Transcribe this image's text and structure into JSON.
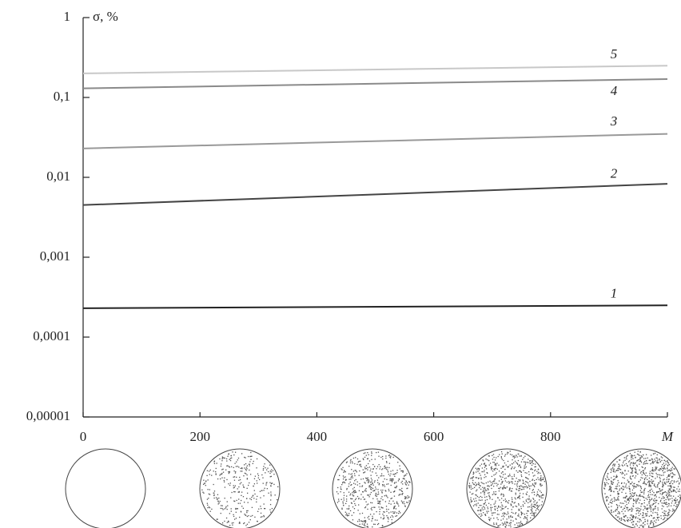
{
  "chart_data": {
    "type": "line",
    "log_y": true,
    "ylabel": "σ, %",
    "xlabel": "M",
    "x": [
      0,
      1000
    ],
    "xlim": [
      0,
      1000
    ],
    "xticks": [
      0,
      200,
      400,
      600,
      800
    ],
    "ylim": [
      1e-05,
      1
    ],
    "yticks": [
      {
        "value": 1e-05,
        "label": "0,00001"
      },
      {
        "value": 0.0001,
        "label": "0,0001"
      },
      {
        "value": 0.001,
        "label": "0,001"
      },
      {
        "value": 0.01,
        "label": "0,01"
      },
      {
        "value": 0.1,
        "label": "0,1"
      },
      1
    ],
    "series": [
      {
        "name": "1",
        "color": "#222222",
        "values": [
          0.00023,
          0.00025
        ]
      },
      {
        "name": "2",
        "color": "#444444",
        "values": [
          0.0045,
          0.0083
        ]
      },
      {
        "name": "3",
        "color": "#999999",
        "values": [
          0.023,
          0.035
        ]
      },
      {
        "name": "4",
        "color": "#8a8a8a",
        "values": [
          0.13,
          0.17
        ]
      },
      {
        "name": "5",
        "color": "#c8c8c8",
        "values": [
          0.2,
          0.25
        ]
      }
    ]
  }
}
